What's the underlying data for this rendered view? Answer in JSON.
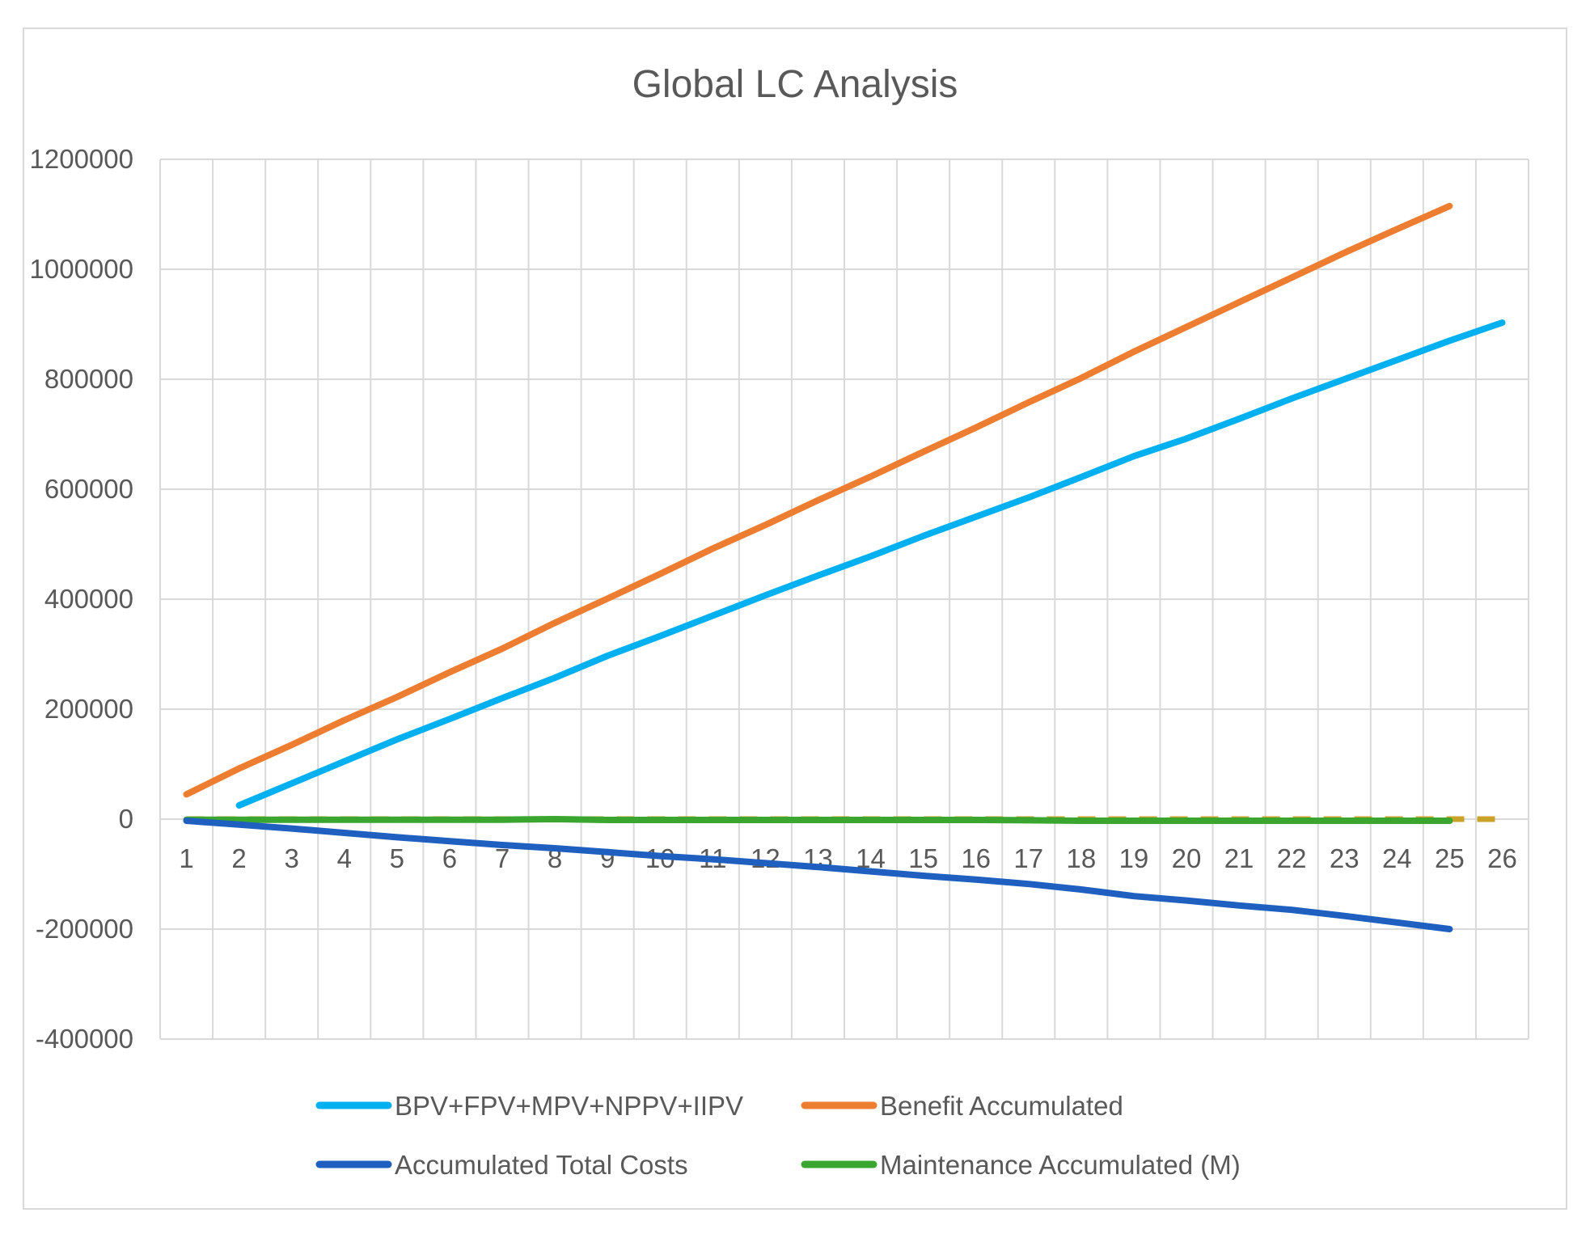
{
  "chart_data": {
    "type": "line",
    "title": "Global LC Analysis",
    "xlabel": "",
    "ylabel": "",
    "categories": [
      "1",
      "2",
      "3",
      "4",
      "5",
      "6",
      "7",
      "8",
      "9",
      "10",
      "11",
      "12",
      "13",
      "14",
      "15",
      "16",
      "17",
      "18",
      "19",
      "20",
      "21",
      "22",
      "23",
      "24",
      "25",
      "26"
    ],
    "ylim": [
      -400000,
      1200000
    ],
    "yticks": [
      1200000,
      1000000,
      800000,
      600000,
      400000,
      200000,
      0,
      -200000,
      -400000
    ],
    "ytick_labels": [
      "1200000",
      "1000000",
      "800000",
      "600000",
      "400000",
      "200000",
      "0",
      "-200000",
      "-400000"
    ],
    "grid": true,
    "legend_position": "bottom",
    "series": [
      {
        "name": "BPV+FPV+MPV+NPPV+IIPV",
        "color": "#00b0f0",
        "start_index": 1,
        "values": [
          null,
          25000,
          65000,
          105000,
          145000,
          182000,
          220000,
          257000,
          297000,
          333000,
          370000,
          407000,
          443000,
          478000,
          515000,
          550000,
          585000,
          622000,
          660000,
          692000,
          728000,
          765000,
          800000,
          835000,
          870000,
          903000
        ]
      },
      {
        "name": "Benefit Accumulated",
        "color": "#ed7d31",
        "values": [
          45000,
          92000,
          135000,
          180000,
          222000,
          267000,
          310000,
          357000,
          401000,
          446000,
          492000,
          535000,
          580000,
          623000,
          668000,
          712000,
          758000,
          802000,
          850000,
          895000,
          940000,
          985000,
          1030000,
          1073000,
          1115000,
          null
        ]
      },
      {
        "name": "Accumulated Total Costs",
        "color": "#1f5fbf",
        "values": [
          -3000,
          -10000,
          -17000,
          -25000,
          -33000,
          -40000,
          -47000,
          -53000,
          -60000,
          -67000,
          -73000,
          -80000,
          -87000,
          -95000,
          -103000,
          -110000,
          -118000,
          -128000,
          -140000,
          -148000,
          -157000,
          -165000,
          -176000,
          -188000,
          -200000,
          null
        ]
      },
      {
        "name": "Maintenance Accumulated (M)",
        "color": "#3aa62f",
        "values": [
          -1000,
          -1000,
          -1000,
          -1000,
          -1000,
          -1000,
          -1000,
          0,
          -1500,
          -1500,
          -1500,
          -1500,
          -1500,
          -1500,
          -1500,
          -1500,
          -2000,
          -3000,
          -3000,
          -3000,
          -3000,
          -3000,
          -3000,
          -3000,
          -3000,
          null
        ]
      },
      {
        "name": "",
        "color": "#c9a227",
        "dashed": true,
        "values": [
          0,
          0,
          0,
          0,
          0,
          0,
          0,
          0,
          0,
          0,
          0,
          0,
          0,
          0,
          0,
          0,
          0,
          0,
          0,
          0,
          0,
          0,
          0,
          0,
          0,
          0
        ]
      }
    ],
    "legend": [
      {
        "label": "BPV+FPV+MPV+NPPV+IIPV",
        "color": "#00b0f0"
      },
      {
        "label": "Benefit Accumulated",
        "color": "#ed7d31"
      },
      {
        "label": "Accumulated Total Costs",
        "color": "#1f5fbf"
      },
      {
        "label": "Maintenance Accumulated (M)",
        "color": "#3aa62f"
      }
    ]
  }
}
